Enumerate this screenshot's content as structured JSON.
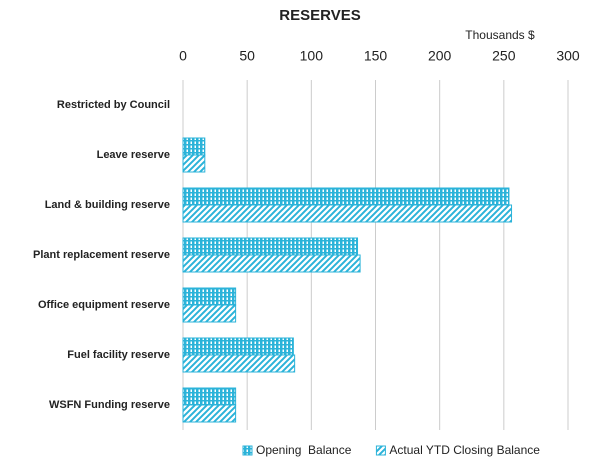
{
  "chart_data": {
    "type": "bar",
    "orientation": "horizontal",
    "title": "RESERVES",
    "x_label": "Thousands $",
    "categories": [
      "Restricted by Council",
      "Leave reserve",
      "Land & building reserve",
      "Plant replacement reserve",
      "Office equipment reserve",
      "Fuel facility reserve",
      "WSFN Funding reserve"
    ],
    "series": [
      {
        "name": "Opening  Balance",
        "color": "#2bb3d9",
        "pattern": "grid",
        "values": [
          0,
          17,
          254,
          136,
          41,
          86,
          41
        ]
      },
      {
        "name": "Actual YTD Closing Balance",
        "color": "#2bb3d9",
        "pattern": "hatch",
        "values": [
          0,
          17,
          256,
          138,
          41,
          87,
          41
        ]
      }
    ],
    "xlim": [
      0,
      300
    ],
    "xticks": [
      0,
      50,
      100,
      150,
      200,
      250,
      300
    ],
    "grid": true,
    "legend": "bottom"
  }
}
